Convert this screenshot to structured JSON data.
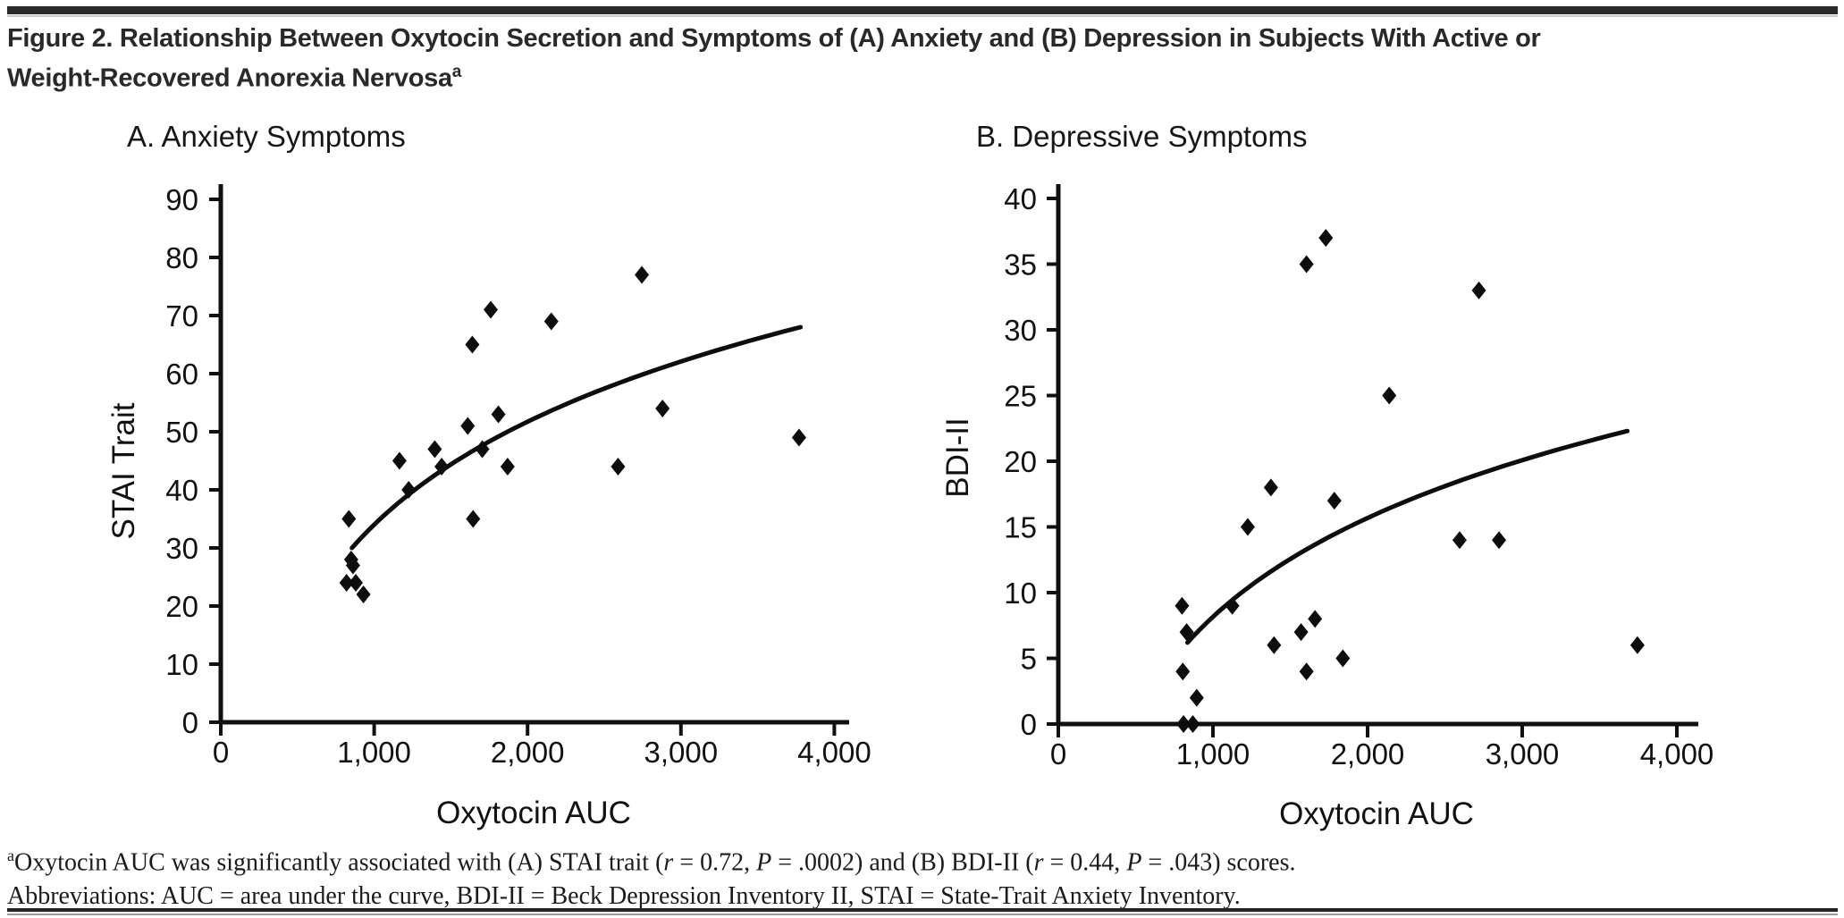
{
  "page": {
    "background": "#ffffff",
    "top_bar_color": "#2a2a2a",
    "bottom_rule_dark_color": "#242424",
    "bottom_rule_gray_color": "#9a9a9a",
    "axis_color": "#101010",
    "marker_color": "#0d0d0d"
  },
  "header": {
    "title_line1": "Figure 2. Relationship Between Oxytocin Secretion and Symptoms of (A) Anxiety and (B) Depression in Subjects With Active or",
    "title_line2": "Weight-Recovered Anorexia Nervosa",
    "title_superscript": "a"
  },
  "chart_data": [
    {
      "type": "scatter",
      "title": "A. Anxiety Symptoms",
      "xlabel": "Oxytocin AUC",
      "ylabel": "STAI Trait",
      "xlim": [
        0,
        4000
      ],
      "ylim": [
        0,
        90
      ],
      "xtick_values": [
        0,
        1000,
        2000,
        3000,
        4000
      ],
      "xtick_labels": [
        "0",
        "1,000",
        "2,000",
        "3,000",
        "4,000"
      ],
      "ytick_values": [
        0,
        10,
        20,
        30,
        40,
        50,
        60,
        70,
        80,
        90
      ],
      "ytick_labels": [
        "0",
        "10",
        "20",
        "30",
        "40",
        "50",
        "60",
        "70",
        "80",
        "90"
      ],
      "grid": false,
      "legend": "none",
      "marker": "diamond",
      "points": [
        [
          835,
          35
        ],
        [
          850,
          28
        ],
        [
          862,
          27
        ],
        [
          820,
          24
        ],
        [
          880,
          24
        ],
        [
          930,
          22
        ],
        [
          1165,
          45
        ],
        [
          1225,
          40
        ],
        [
          1395,
          47
        ],
        [
          1440,
          44
        ],
        [
          1610,
          51
        ],
        [
          1640,
          65
        ],
        [
          1645,
          35
        ],
        [
          1705,
          47
        ],
        [
          1760,
          71
        ],
        [
          1810,
          53
        ],
        [
          1870,
          44
        ],
        [
          2155,
          69
        ],
        [
          2590,
          44
        ],
        [
          2745,
          77
        ],
        [
          2880,
          54
        ],
        [
          3770,
          49
        ]
      ],
      "trend_curve": {
        "shape": "logarithmic",
        "x_start": 855,
        "y_start": 30,
        "x_end": 3780,
        "y_end": 68
      }
    },
    {
      "type": "scatter",
      "title": "B. Depressive Symptoms",
      "xlabel": "Oxytocin AUC",
      "ylabel": "BDI-II",
      "xlim": [
        0,
        4000
      ],
      "ylim": [
        0,
        40
      ],
      "xtick_values": [
        0,
        1000,
        2000,
        3000,
        4000
      ],
      "xtick_labels": [
        "0",
        "1,000",
        "2,000",
        "3,000",
        "4,000"
      ],
      "ytick_values": [
        0,
        5,
        10,
        15,
        20,
        25,
        30,
        35,
        40
      ],
      "ytick_labels": [
        "0",
        "5",
        "10",
        "15",
        "20",
        "25",
        "30",
        "35",
        "40"
      ],
      "grid": false,
      "legend": "none",
      "marker": "diamond",
      "points": [
        [
          810,
          0
        ],
        [
          870,
          0
        ],
        [
          895,
          2
        ],
        [
          805,
          4
        ],
        [
          830,
          7
        ],
        [
          800,
          9
        ],
        [
          1125,
          9
        ],
        [
          1225,
          15
        ],
        [
          1375,
          18
        ],
        [
          1395,
          6
        ],
        [
          1570,
          7
        ],
        [
          1605,
          35
        ],
        [
          1605,
          4
        ],
        [
          1660,
          8
        ],
        [
          1730,
          37
        ],
        [
          1785,
          17
        ],
        [
          1840,
          5
        ],
        [
          2140,
          25
        ],
        [
          2595,
          14
        ],
        [
          2720,
          33
        ],
        [
          2850,
          14
        ],
        [
          3745,
          6
        ]
      ],
      "trend_curve": {
        "shape": "logarithmic",
        "x_start": 835,
        "y_start": 6.2,
        "x_end": 3680,
        "y_end": 22.3
      }
    }
  ],
  "footnote": {
    "superscript": "a",
    "l1a": "Oxytocin AUC was significantly associated with (A) STAI trait (",
    "l1b": "r",
    "l1c": " = 0.72, ",
    "l1d": "P",
    "l1e": " = .0002) and (B) BDI-II (",
    "l1f": "r",
    "l1g": " = 0.44, ",
    "l1h": "P",
    "l1i": " = .043) scores.",
    "line2": "Abbreviations: AUC = area under the curve, BDI-II = Beck Depression Inventory II, STAI = State-Trait Anxiety Inventory."
  }
}
